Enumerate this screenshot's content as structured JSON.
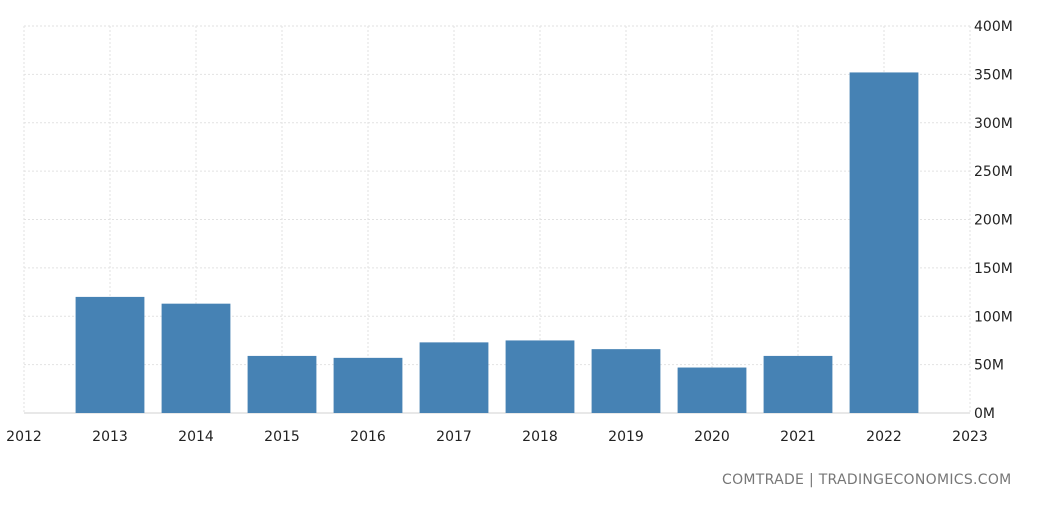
{
  "chart_data": {
    "type": "bar",
    "categories": [
      "2013",
      "2014",
      "2015",
      "2016",
      "2017",
      "2018",
      "2019",
      "2020",
      "2021",
      "2022"
    ],
    "values": [
      120,
      113,
      59,
      57,
      73,
      75,
      66,
      47,
      59,
      352
    ],
    "x_ticks": [
      "2012",
      "2013",
      "2014",
      "2015",
      "2016",
      "2017",
      "2018",
      "2019",
      "2020",
      "2021",
      "2022",
      "2023"
    ],
    "y_ticks": [
      "0M",
      "50M",
      "100M",
      "150M",
      "200M",
      "250M",
      "300M",
      "350M",
      "400M"
    ],
    "ylim": [
      0,
      400
    ],
    "xlim": [
      2012,
      2023
    ],
    "grid": true,
    "bar_color": "#4682b4",
    "gridline_color": "#e2e2e2"
  },
  "source_label": "COMTRADE | TRADINGECONOMICS.COM"
}
